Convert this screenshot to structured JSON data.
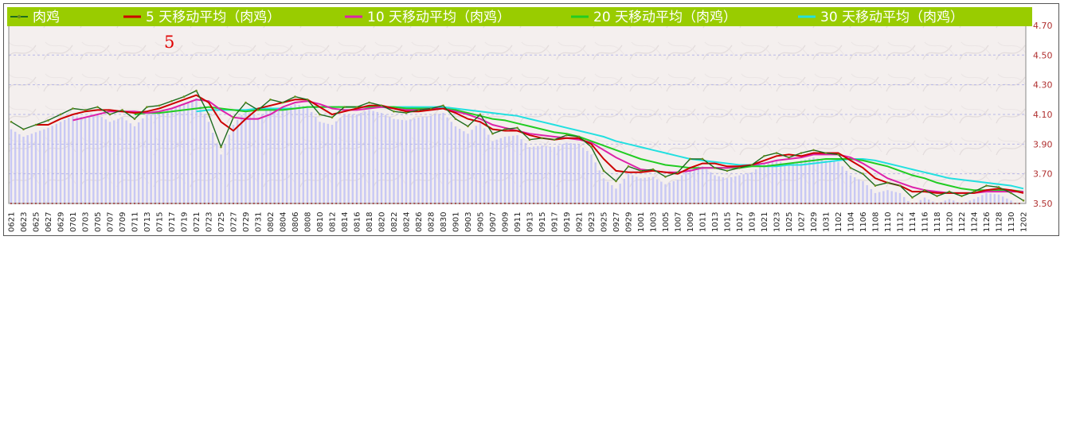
{
  "chart_data": {
    "type": "line",
    "annotation": "5",
    "yticks": [
      "4.70",
      "4.50",
      "4.30",
      "4.10",
      "3.90",
      "3.70",
      "3.50"
    ],
    "ylim": [
      3.5,
      4.78
    ],
    "grid": true,
    "legend_position": "top",
    "x": [
      "0621",
      "0623",
      "0625",
      "0627",
      "0629",
      "0701",
      "0703",
      "0705",
      "0707",
      "0709",
      "0711",
      "0713",
      "0715",
      "0717",
      "0719",
      "0721",
      "0723",
      "0725",
      "0727",
      "0729",
      "0731",
      "0802",
      "0804",
      "0806",
      "0808",
      "0810",
      "0812",
      "0814",
      "0816",
      "0818",
      "0820",
      "0822",
      "0824",
      "0826",
      "0828",
      "0830",
      "0901",
      "0903",
      "0905",
      "0907",
      "0909",
      "0911",
      "0913",
      "0915",
      "0917",
      "0919",
      "0921",
      "0923",
      "0925",
      "0927",
      "0929",
      "1001",
      "1003",
      "1005",
      "1007",
      "1009",
      "1011",
      "1013",
      "1015",
      "1017",
      "1019",
      "1021",
      "1023",
      "1025",
      "1027",
      "1029",
      "1031",
      "1102",
      "1104",
      "1106",
      "1108",
      "1110",
      "1112",
      "1114",
      "1116",
      "1118",
      "1120",
      "1122",
      "1124",
      "1126",
      "1128",
      "1130",
      "1202"
    ],
    "series": [
      {
        "name": "肉鸡",
        "color": "#1e6b1e",
        "values": [
          4.05,
          4.0,
          4.03,
          4.06,
          4.1,
          4.14,
          4.13,
          4.15,
          4.1,
          4.13,
          4.07,
          4.15,
          4.16,
          4.19,
          4.22,
          4.26,
          4.1,
          3.88,
          4.08,
          4.18,
          4.13,
          4.2,
          4.18,
          4.22,
          4.2,
          4.1,
          4.08,
          4.15,
          4.15,
          4.18,
          4.16,
          4.12,
          4.11,
          4.13,
          4.14,
          4.16,
          4.07,
          4.02,
          4.1,
          3.97,
          4.0,
          4.01,
          3.93,
          3.94,
          3.93,
          3.96,
          3.95,
          3.88,
          3.72,
          3.65,
          3.75,
          3.72,
          3.73,
          3.68,
          3.71,
          3.8,
          3.8,
          3.74,
          3.72,
          3.74,
          3.76,
          3.82,
          3.84,
          3.81,
          3.84,
          3.86,
          3.84,
          3.83,
          3.74,
          3.7,
          3.62,
          3.64,
          3.62,
          3.54,
          3.59,
          3.55,
          3.58,
          3.55,
          3.58,
          3.62,
          3.61,
          3.57,
          3.52
        ]
      },
      {
        "name": "5 天移动平均（肉鸡）",
        "color": "#cc0000",
        "values": [
          null,
          null,
          4.03,
          4.03,
          4.07,
          4.1,
          4.12,
          4.13,
          4.13,
          4.12,
          4.11,
          4.12,
          4.14,
          4.17,
          4.2,
          4.23,
          4.18,
          4.05,
          3.99,
          4.07,
          4.14,
          4.16,
          4.18,
          4.2,
          4.2,
          4.15,
          4.1,
          4.12,
          4.14,
          4.16,
          4.16,
          4.14,
          4.12,
          4.12,
          4.13,
          4.14,
          4.11,
          4.07,
          4.05,
          4.0,
          3.99,
          3.99,
          3.96,
          3.94,
          3.93,
          3.94,
          3.94,
          3.9,
          3.8,
          3.72,
          3.71,
          3.71,
          3.72,
          3.71,
          3.7,
          3.74,
          3.77,
          3.77,
          3.75,
          3.75,
          3.76,
          3.79,
          3.82,
          3.83,
          3.82,
          3.84,
          3.84,
          3.84,
          3.79,
          3.74,
          3.67,
          3.64,
          3.62,
          3.58,
          3.58,
          3.57,
          3.57,
          3.57,
          3.57,
          3.59,
          3.6,
          3.59,
          3.57
        ]
      },
      {
        "name": "10 天移动平均（肉鸡）",
        "color": "#dd22aa",
        "values": [
          null,
          null,
          null,
          null,
          null,
          4.06,
          4.08,
          4.1,
          4.12,
          4.12,
          4.12,
          4.11,
          4.12,
          4.14,
          4.17,
          4.2,
          4.19,
          4.13,
          4.08,
          4.07,
          4.07,
          4.1,
          4.15,
          4.18,
          4.19,
          4.17,
          4.14,
          4.13,
          4.13,
          4.14,
          4.15,
          4.14,
          4.13,
          4.13,
          4.14,
          4.14,
          4.12,
          4.1,
          4.07,
          4.03,
          4.01,
          3.99,
          3.97,
          3.96,
          3.95,
          3.94,
          3.93,
          3.91,
          3.86,
          3.81,
          3.77,
          3.73,
          3.72,
          3.71,
          3.71,
          3.72,
          3.74,
          3.74,
          3.74,
          3.75,
          3.76,
          3.77,
          3.79,
          3.8,
          3.81,
          3.83,
          3.83,
          3.83,
          3.81,
          3.77,
          3.72,
          3.67,
          3.64,
          3.61,
          3.59,
          3.58,
          3.57,
          3.57,
          3.57,
          3.58,
          3.58,
          3.58,
          3.58
        ]
      },
      {
        "name": "20 天移动平均（肉鸡）",
        "color": "#22cc22",
        "values": [
          null,
          null,
          null,
          null,
          null,
          null,
          null,
          null,
          null,
          null,
          4.1,
          4.11,
          4.11,
          4.12,
          4.13,
          4.14,
          4.15,
          4.14,
          4.13,
          4.12,
          4.13,
          4.13,
          4.13,
          4.14,
          4.15,
          4.15,
          4.15,
          4.15,
          4.15,
          4.15,
          4.15,
          4.15,
          4.14,
          4.14,
          4.14,
          4.14,
          4.13,
          4.11,
          4.09,
          4.07,
          4.06,
          4.04,
          4.02,
          4.0,
          3.98,
          3.97,
          3.95,
          3.92,
          3.89,
          3.86,
          3.83,
          3.8,
          3.78,
          3.76,
          3.75,
          3.74,
          3.74,
          3.74,
          3.74,
          3.74,
          3.75,
          3.75,
          3.76,
          3.77,
          3.78,
          3.79,
          3.8,
          3.8,
          3.8,
          3.79,
          3.77,
          3.75,
          3.72,
          3.69,
          3.67,
          3.64,
          3.62,
          3.6,
          3.59,
          3.59,
          3.59,
          3.59,
          3.58
        ]
      },
      {
        "name": "30 天移动平均（肉鸡）",
        "color": "#22e0e0",
        "values": [
          null,
          null,
          null,
          null,
          null,
          null,
          null,
          null,
          null,
          null,
          null,
          null,
          null,
          null,
          null,
          4.12,
          4.13,
          4.13,
          4.13,
          4.13,
          4.14,
          4.14,
          4.14,
          4.14,
          4.15,
          4.15,
          4.15,
          4.15,
          4.15,
          4.15,
          4.15,
          4.15,
          4.15,
          4.15,
          4.15,
          4.15,
          4.14,
          4.13,
          4.12,
          4.11,
          4.1,
          4.09,
          4.07,
          4.05,
          4.03,
          4.01,
          3.99,
          3.97,
          3.95,
          3.92,
          3.9,
          3.88,
          3.86,
          3.84,
          3.82,
          3.8,
          3.79,
          3.78,
          3.77,
          3.76,
          3.76,
          3.75,
          3.75,
          3.76,
          3.76,
          3.77,
          3.78,
          3.79,
          3.8,
          3.8,
          3.79,
          3.77,
          3.75,
          3.73,
          3.71,
          3.69,
          3.67,
          3.66,
          3.65,
          3.64,
          3.63,
          3.62,
          3.6
        ]
      }
    ]
  }
}
